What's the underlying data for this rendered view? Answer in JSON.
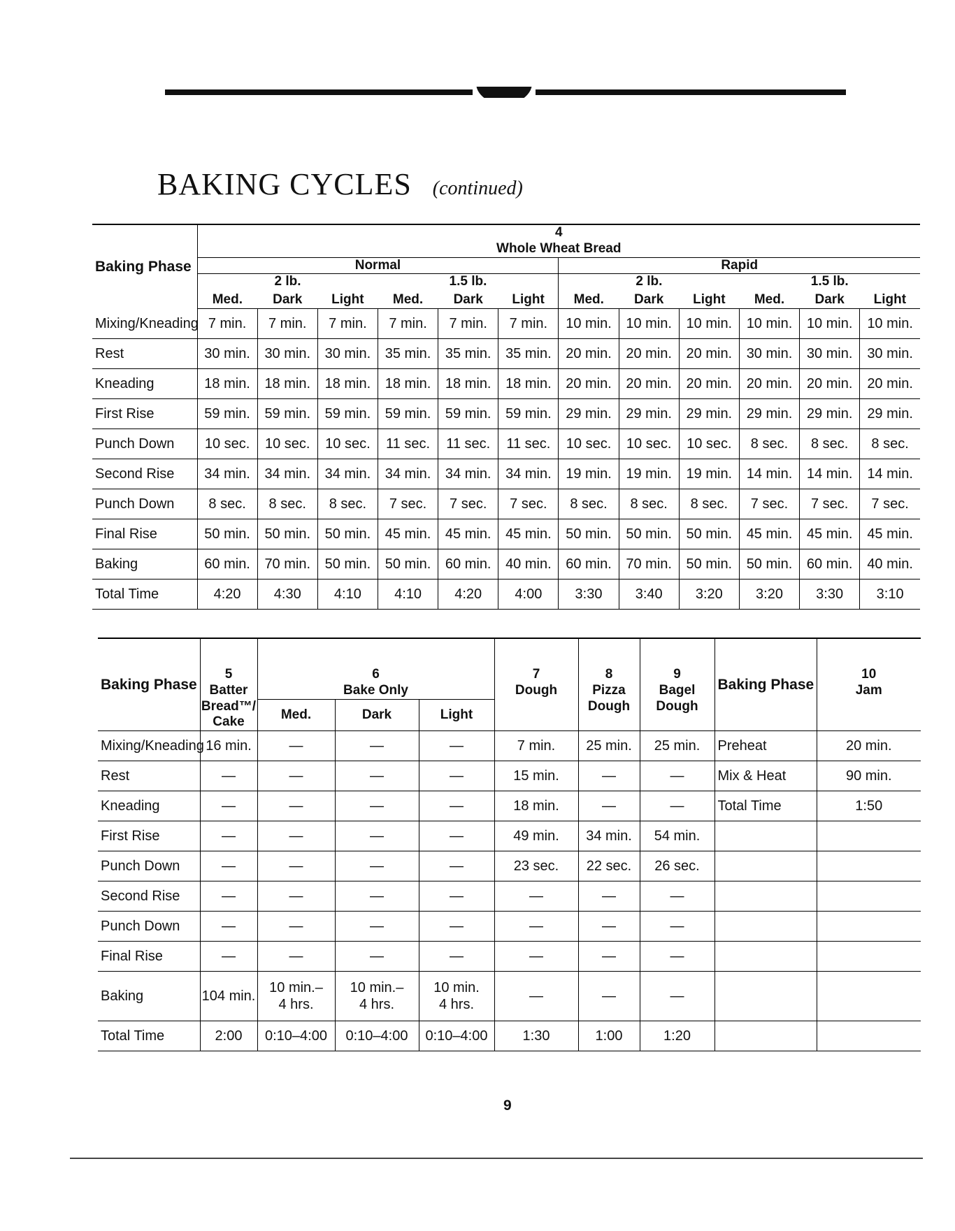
{
  "title": "BAKING CYCLES",
  "subtitle": "(continued)",
  "page_number": "9",
  "table1": {
    "phase_header": "Baking Phase",
    "cycle_number": "4",
    "cycle_name": "Whole Wheat Bread",
    "modes": [
      "Normal",
      "Rapid"
    ],
    "sizes": [
      "2 lb.",
      "1.5 lb.",
      "2 lb.",
      "1.5 lb."
    ],
    "crusts": [
      "Med.",
      "Dark",
      "Light",
      "Med.",
      "Dark",
      "Light",
      "Med.",
      "Dark",
      "Light",
      "Med.",
      "Dark",
      "Light"
    ],
    "rows": [
      {
        "phase": "Mixing/Kneading",
        "values": [
          "7 min.",
          "7 min.",
          "7 min.",
          "7 min.",
          "7 min.",
          "7 min.",
          "10 min.",
          "10 min.",
          "10 min.",
          "10 min.",
          "10 min.",
          "10 min."
        ]
      },
      {
        "phase": "Rest",
        "values": [
          "30 min.",
          "30 min.",
          "30 min.",
          "35 min.",
          "35 min.",
          "35 min.",
          "20 min.",
          "20 min.",
          "20 min.",
          "30 min.",
          "30 min.",
          "30 min."
        ]
      },
      {
        "phase": "Kneading",
        "values": [
          "18 min.",
          "18 min.",
          "18 min.",
          "18 min.",
          "18 min.",
          "18 min.",
          "20 min.",
          "20 min.",
          "20 min.",
          "20 min.",
          "20 min.",
          "20 min."
        ]
      },
      {
        "phase": "First Rise",
        "values": [
          "59 min.",
          "59 min.",
          "59 min.",
          "59 min.",
          "59 min.",
          "59 min.",
          "29 min.",
          "29 min.",
          "29 min.",
          "29 min.",
          "29 min.",
          "29 min."
        ]
      },
      {
        "phase": "Punch Down",
        "values": [
          "10 sec.",
          "10 sec.",
          "10 sec.",
          "11 sec.",
          "11 sec.",
          "11 sec.",
          "10 sec.",
          "10 sec.",
          "10 sec.",
          "8 sec.",
          "8 sec.",
          "8 sec."
        ]
      },
      {
        "phase": "Second Rise",
        "values": [
          "34 min.",
          "34 min.",
          "34 min.",
          "34 min.",
          "34 min.",
          "34 min.",
          "19 min.",
          "19 min.",
          "19 min.",
          "14 min.",
          "14 min.",
          "14 min."
        ]
      },
      {
        "phase": "Punch Down",
        "values": [
          "8 sec.",
          "8 sec.",
          "8 sec.",
          "7 sec.",
          "7 sec.",
          "7 sec.",
          "8 sec.",
          "8 sec.",
          "8 sec.",
          "7 sec.",
          "7 sec.",
          "7 sec."
        ]
      },
      {
        "phase": "Final Rise",
        "values": [
          "50 min.",
          "50 min.",
          "50 min.",
          "45 min.",
          "45 min.",
          "45 min.",
          "50 min.",
          "50 min.",
          "50 min.",
          "45 min.",
          "45 min.",
          "45 min."
        ]
      },
      {
        "phase": "Baking",
        "values": [
          "60 min.",
          "70 min.",
          "50 min.",
          "50 min.",
          "60 min.",
          "40 min.",
          "60 min.",
          "70 min.",
          "50 min.",
          "50 min.",
          "60 min.",
          "40 min."
        ]
      },
      {
        "phase": "Total Time",
        "values": [
          "4:20",
          "4:30",
          "4:10",
          "4:10",
          "4:20",
          "4:00",
          "3:30",
          "3:40",
          "3:20",
          "3:20",
          "3:30",
          "3:10"
        ]
      }
    ]
  },
  "table2": {
    "phase_header": "Baking Phase",
    "cycles": [
      {
        "number": "5",
        "name": "Batter\nBread™/\nCake"
      },
      {
        "number": "6",
        "name": "Bake Only",
        "crusts": [
          "Med.",
          "Dark",
          "Light"
        ]
      },
      {
        "number": "7",
        "name": "Dough"
      },
      {
        "number": "8",
        "name": "Pizza\nDough"
      },
      {
        "number": "9",
        "name": "Bagel\nDough"
      }
    ],
    "rows": [
      {
        "phase": "Mixing/Kneading",
        "values": [
          "16 min.",
          "—",
          "—",
          "—",
          "7 min.",
          "25 min.",
          "25 min."
        ]
      },
      {
        "phase": "Rest",
        "values": [
          "—",
          "—",
          "—",
          "—",
          "15 min.",
          "—",
          "—"
        ]
      },
      {
        "phase": "Kneading",
        "values": [
          "—",
          "—",
          "—",
          "—",
          "18 min.",
          "—",
          "—"
        ]
      },
      {
        "phase": "First Rise",
        "values": [
          "—",
          "—",
          "—",
          "—",
          "49 min.",
          "34 min.",
          "54 min."
        ]
      },
      {
        "phase": "Punch Down",
        "values": [
          "—",
          "—",
          "—",
          "—",
          "23 sec.",
          "22 sec.",
          "26 sec."
        ]
      },
      {
        "phase": "Second Rise",
        "values": [
          "—",
          "—",
          "—",
          "—",
          "—",
          "—",
          "—"
        ]
      },
      {
        "phase": "Punch Down",
        "values": [
          "—",
          "—",
          "—",
          "—",
          "—",
          "—",
          "—"
        ]
      },
      {
        "phase": "Final Rise",
        "values": [
          "—",
          "—",
          "—",
          "—",
          "—",
          "—",
          "—"
        ]
      },
      {
        "phase": "Baking",
        "values": [
          "104 min.",
          "10 min.–\n4 hrs.",
          "10 min.–\n4 hrs.",
          "10 min.\n4 hrs.",
          "—",
          "—",
          "—"
        ]
      },
      {
        "phase": "Total Time",
        "values": [
          "2:00",
          "0:10–4:00",
          "0:10–4:00",
          "0:10–4:00",
          "1:30",
          "1:00",
          "1:20"
        ]
      }
    ],
    "jam": {
      "phase_header": "Baking Phase",
      "number": "10",
      "name": "Jam",
      "rows": [
        {
          "phase": "Preheat",
          "value": "20 min."
        },
        {
          "phase": "Mix & Heat",
          "value": "90 min."
        },
        {
          "phase": "Total Time",
          "value": "1:50"
        }
      ]
    }
  }
}
